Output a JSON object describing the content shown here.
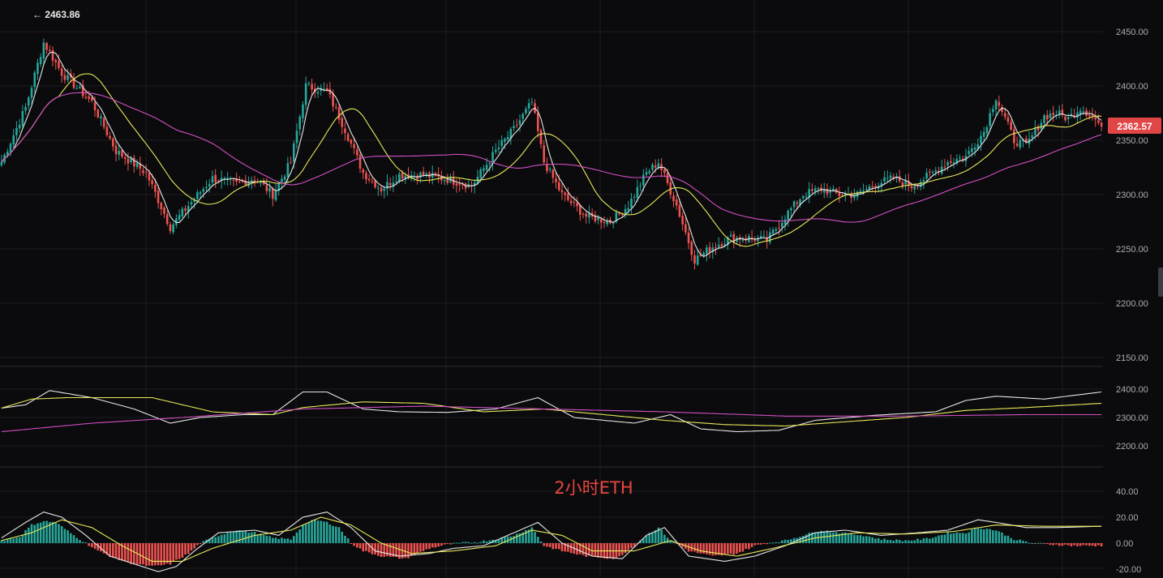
{
  "colors": {
    "background": "#0b0b0d",
    "grid": "#1c1e23",
    "up": "#26a69a",
    "down": "#ef5350",
    "ma_short": "#e6e6e6",
    "ma_mid": "#e8e85a",
    "ma_long": "#d24fc4",
    "price_tag": "#e04646",
    "watermark": "#e8463f"
  },
  "watermark": "2小时ETH",
  "high_marker": "← 2463.86",
  "last_price": "2362.57",
  "chart_data": [
    {
      "type": "candlestick",
      "panel": "main",
      "y_axis_ticks": [
        "2450.00",
        "2400.00",
        "2350.00",
        "2300.00",
        "2250.00",
        "2200.00",
        "2150.00"
      ],
      "ylim": [
        2150,
        2450
      ],
      "high": 2463.86,
      "last": 2362.57,
      "anchors_close": [
        [
          0,
          2330
        ],
        [
          8,
          2380
        ],
        [
          14,
          2440
        ],
        [
          20,
          2412
        ],
        [
          30,
          2385
        ],
        [
          38,
          2340
        ],
        [
          48,
          2320
        ],
        [
          56,
          2270
        ],
        [
          62,
          2290
        ],
        [
          70,
          2315
        ],
        [
          78,
          2310
        ],
        [
          84,
          2315
        ],
        [
          90,
          2300
        ],
        [
          96,
          2330
        ],
        [
          101,
          2400
        ],
        [
          108,
          2395
        ],
        [
          114,
          2360
        ],
        [
          120,
          2320
        ],
        [
          126,
          2305
        ],
        [
          132,
          2318
        ],
        [
          140,
          2318
        ],
        [
          148,
          2314
        ],
        [
          156,
          2308
        ],
        [
          164,
          2340
        ],
        [
          170,
          2360
        ],
        [
          176,
          2385
        ],
        [
          180,
          2330
        ],
        [
          186,
          2300
        ],
        [
          194,
          2280
        ],
        [
          202,
          2275
        ],
        [
          208,
          2290
        ],
        [
          214,
          2320
        ],
        [
          218,
          2330
        ],
        [
          224,
          2290
        ],
        [
          230,
          2240
        ],
        [
          236,
          2252
        ],
        [
          242,
          2260
        ],
        [
          248,
          2260
        ],
        [
          254,
          2258
        ],
        [
          260,
          2280
        ],
        [
          266,
          2300
        ],
        [
          272,
          2305
        ],
        [
          278,
          2300
        ],
        [
          284,
          2300
        ],
        [
          290,
          2310
        ],
        [
          296,
          2315
        ],
        [
          302,
          2308
        ],
        [
          308,
          2318
        ],
        [
          314,
          2330
        ],
        [
          320,
          2335
        ],
        [
          326,
          2358
        ],
        [
          330,
          2390
        ],
        [
          336,
          2350
        ],
        [
          340,
          2345
        ],
        [
          346,
          2372
        ],
        [
          350,
          2375
        ],
        [
          354,
          2370
        ],
        [
          358,
          2380
        ],
        [
          362,
          2372
        ],
        [
          365,
          2362.57
        ]
      ],
      "candle_count": 366,
      "ma_short_period": 5,
      "ma_mid_period": 20,
      "ma_long_period": 60
    },
    {
      "type": "line",
      "panel": "secondary",
      "y_axis_ticks": [
        "2400.00",
        "2300.00",
        "2200.00"
      ],
      "ylim": [
        2200,
        2400
      ],
      "series": [
        {
          "key": "fast",
          "color": "#e6e6e6",
          "anchors": [
            [
              0,
              2333
            ],
            [
              8,
              2345
            ],
            [
              16,
              2395
            ],
            [
              30,
              2370
            ],
            [
              44,
              2330
            ],
            [
              56,
              2280
            ],
            [
              66,
              2300
            ],
            [
              80,
              2310
            ],
            [
              90,
              2310
            ],
            [
              100,
              2390
            ],
            [
              108,
              2390
            ],
            [
              120,
              2330
            ],
            [
              132,
              2320
            ],
            [
              148,
              2318
            ],
            [
              164,
              2330
            ],
            [
              178,
              2370
            ],
            [
              190,
              2300
            ],
            [
              210,
              2280
            ],
            [
              222,
              2310
            ],
            [
              232,
              2260
            ],
            [
              244,
              2250
            ],
            [
              258,
              2255
            ],
            [
              270,
              2290
            ],
            [
              290,
              2308
            ],
            [
              310,
              2320
            ],
            [
              320,
              2360
            ],
            [
              330,
              2375
            ],
            [
              346,
              2365
            ],
            [
              365,
              2390
            ]
          ]
        },
        {
          "key": "mid",
          "color": "#e8e85a",
          "anchors": [
            [
              0,
              2333
            ],
            [
              10,
              2365
            ],
            [
              22,
              2370
            ],
            [
              50,
              2370
            ],
            [
              70,
              2320
            ],
            [
              90,
              2310
            ],
            [
              100,
              2335
            ],
            [
              120,
              2355
            ],
            [
              140,
              2350
            ],
            [
              160,
              2320
            ],
            [
              180,
              2330
            ],
            [
              200,
              2310
            ],
            [
              220,
              2290
            ],
            [
              240,
              2275
            ],
            [
              260,
              2270
            ],
            [
              280,
              2285
            ],
            [
              300,
              2300
            ],
            [
              320,
              2325
            ],
            [
              340,
              2335
            ],
            [
              365,
              2350
            ]
          ]
        },
        {
          "key": "slow",
          "color": "#d24fc4",
          "anchors": [
            [
              0,
              2250
            ],
            [
              30,
              2280
            ],
            [
              60,
              2300
            ],
            [
              100,
              2330
            ],
            [
              140,
              2340
            ],
            [
              180,
              2330
            ],
            [
              220,
              2320
            ],
            [
              260,
              2305
            ],
            [
              300,
              2305
            ],
            [
              340,
              2310
            ],
            [
              365,
              2310
            ]
          ]
        }
      ]
    },
    {
      "type": "macd",
      "panel": "oscillator",
      "y_axis_ticks": [
        "40.00",
        "20.00",
        "0.00",
        "-20.00"
      ],
      "ylim": [
        -20,
        40
      ],
      "histogram_anchors": [
        [
          0,
          2
        ],
        [
          6,
          5
        ],
        [
          10,
          14
        ],
        [
          14,
          17
        ],
        [
          18,
          16
        ],
        [
          24,
          6
        ],
        [
          28,
          0
        ],
        [
          32,
          -6
        ],
        [
          38,
          -12
        ],
        [
          44,
          -16
        ],
        [
          50,
          -18
        ],
        [
          56,
          -16
        ],
        [
          62,
          -8
        ],
        [
          66,
          0
        ],
        [
          72,
          6
        ],
        [
          78,
          10
        ],
        [
          84,
          8
        ],
        [
          90,
          4
        ],
        [
          96,
          3
        ],
        [
          100,
          14
        ],
        [
          104,
          18
        ],
        [
          108,
          16
        ],
        [
          112,
          12
        ],
        [
          116,
          0
        ],
        [
          120,
          -6
        ],
        [
          126,
          -10
        ],
        [
          134,
          -12
        ],
        [
          142,
          -4
        ],
        [
          148,
          -1
        ],
        [
          152,
          0
        ],
        [
          158,
          1
        ],
        [
          164,
          3
        ],
        [
          170,
          6
        ],
        [
          176,
          12
        ],
        [
          180,
          -2
        ],
        [
          186,
          -6
        ],
        [
          194,
          -10
        ],
        [
          204,
          -12
        ],
        [
          210,
          -2
        ],
        [
          214,
          6
        ],
        [
          218,
          12
        ],
        [
          222,
          2
        ],
        [
          228,
          -6
        ],
        [
          236,
          -10
        ],
        [
          244,
          -8
        ],
        [
          250,
          -2
        ],
        [
          254,
          0
        ],
        [
          260,
          2
        ],
        [
          266,
          6
        ],
        [
          272,
          10
        ],
        [
          278,
          8
        ],
        [
          286,
          6
        ],
        [
          292,
          3
        ],
        [
          300,
          2
        ],
        [
          306,
          3
        ],
        [
          310,
          5
        ],
        [
          314,
          8
        ],
        [
          320,
          8
        ],
        [
          324,
          12
        ],
        [
          330,
          10
        ],
        [
          336,
          3
        ],
        [
          342,
          0
        ],
        [
          348,
          -1
        ],
        [
          356,
          -2
        ],
        [
          365,
          -2
        ]
      ],
      "dif_anchors": [
        [
          0,
          4
        ],
        [
          8,
          16
        ],
        [
          14,
          24
        ],
        [
          20,
          20
        ],
        [
          28,
          6
        ],
        [
          36,
          -10
        ],
        [
          44,
          -16
        ],
        [
          52,
          -22
        ],
        [
          58,
          -18
        ],
        [
          64,
          -6
        ],
        [
          72,
          8
        ],
        [
          84,
          10
        ],
        [
          92,
          6
        ],
        [
          100,
          20
        ],
        [
          108,
          24
        ],
        [
          116,
          12
        ],
        [
          124,
          -6
        ],
        [
          132,
          -10
        ],
        [
          142,
          -8
        ],
        [
          150,
          -4
        ],
        [
          160,
          -2
        ],
        [
          170,
          8
        ],
        [
          178,
          16
        ],
        [
          186,
          0
        ],
        [
          196,
          -10
        ],
        [
          206,
          -12
        ],
        [
          214,
          6
        ],
        [
          220,
          12
        ],
        [
          228,
          -10
        ],
        [
          240,
          -14
        ],
        [
          250,
          -10
        ],
        [
          260,
          -2
        ],
        [
          270,
          8
        ],
        [
          280,
          10
        ],
        [
          292,
          6
        ],
        [
          304,
          8
        ],
        [
          314,
          10
        ],
        [
          324,
          18
        ],
        [
          330,
          16
        ],
        [
          340,
          12
        ],
        [
          350,
          12
        ],
        [
          365,
          13
        ]
      ],
      "dea_anchors": [
        [
          0,
          2
        ],
        [
          10,
          8
        ],
        [
          20,
          18
        ],
        [
          30,
          12
        ],
        [
          40,
          -2
        ],
        [
          50,
          -14
        ],
        [
          60,
          -14
        ],
        [
          70,
          -4
        ],
        [
          84,
          6
        ],
        [
          96,
          10
        ],
        [
          106,
          20
        ],
        [
          116,
          14
        ],
        [
          126,
          0
        ],
        [
          136,
          -8
        ],
        [
          150,
          -6
        ],
        [
          164,
          -2
        ],
        [
          176,
          10
        ],
        [
          186,
          6
        ],
        [
          196,
          -6
        ],
        [
          210,
          -6
        ],
        [
          222,
          2
        ],
        [
          232,
          -6
        ],
        [
          244,
          -10
        ],
        [
          256,
          -4
        ],
        [
          270,
          4
        ],
        [
          284,
          8
        ],
        [
          300,
          7
        ],
        [
          316,
          9
        ],
        [
          330,
          14
        ],
        [
          346,
          13
        ],
        [
          365,
          13
        ]
      ]
    }
  ]
}
